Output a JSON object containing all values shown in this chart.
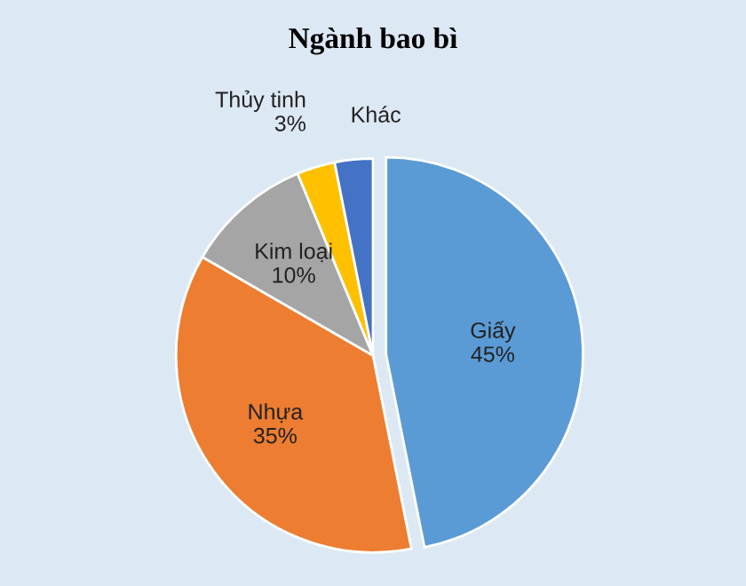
{
  "chart_data": {
    "type": "pie",
    "title": "Ngành bao bì",
    "categories": [
      "Giấy",
      "Nhựa",
      "Kim loại",
      "Thủy tinh",
      "Khác"
    ],
    "values": [
      45,
      35,
      10,
      3,
      3
    ],
    "value_labels": [
      "45%",
      "35%",
      "10%",
      "3%",
      null
    ],
    "colors": [
      "#5b9bd5",
      "#ed7d31",
      "#a5a5a5",
      "#ffc000",
      "#4472c4"
    ]
  }
}
